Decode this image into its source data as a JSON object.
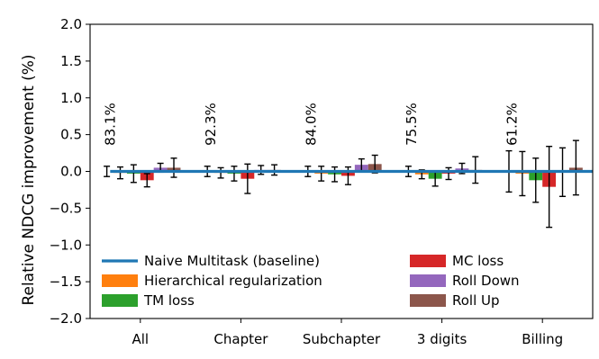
{
  "chart_data": {
    "type": "bar",
    "title": "",
    "xlabel": "",
    "ylabel": "Relative NDCG improvement (%)",
    "ylim": [
      -2.0,
      2.0
    ],
    "yticks": [
      "−2.0",
      "−1.5",
      "−1.0",
      "−0.5",
      "0.0",
      "0.5",
      "1.0",
      "1.5",
      "2.0"
    ],
    "ytick_values": [
      -2.0,
      -1.5,
      -1.0,
      -0.5,
      0.0,
      0.5,
      1.0,
      1.5,
      2.0
    ],
    "grid": false,
    "legend_position": "lower-left, two columns",
    "categories": [
      "All",
      "Chapter",
      "Subchapter",
      "3 digits",
      "Billing"
    ],
    "category_annotations": [
      "83.1%",
      "92.3%",
      "84.0%",
      "75.5%",
      "61.2%"
    ],
    "baseline": {
      "name": "Naive Multitask (baseline)",
      "value": 0.0,
      "color": "#1f77b4"
    },
    "series": [
      {
        "name": "Naive Multitask (baseline)",
        "color": "#1f77b4",
        "values": [
          0.0,
          0.0,
          0.0,
          0.0,
          0.0
        ],
        "errors": [
          0.07,
          0.07,
          0.07,
          0.07,
          0.28
        ]
      },
      {
        "name": "Hierarchical regularization",
        "color": "#ff7f0e",
        "values": [
          -0.02,
          -0.02,
          -0.03,
          -0.04,
          -0.03
        ],
        "errors": [
          0.08,
          0.07,
          0.1,
          0.06,
          0.3
        ]
      },
      {
        "name": "TM loss",
        "color": "#2ca02c",
        "values": [
          -0.03,
          -0.03,
          -0.04,
          -0.1,
          -0.12
        ],
        "errors": [
          0.12,
          0.1,
          0.1,
          0.1,
          0.3
        ]
      },
      {
        "name": "MC loss",
        "color": "#d62728",
        "values": [
          -0.12,
          -0.1,
          -0.06,
          -0.03,
          -0.21
        ],
        "errors": [
          0.09,
          0.2,
          0.12,
          0.08,
          0.55
        ]
      },
      {
        "name": "Roll Down",
        "color": "#9467bd",
        "values": [
          0.05,
          0.02,
          0.09,
          0.04,
          -0.01
        ],
        "errors": [
          0.06,
          0.06,
          0.08,
          0.07,
          0.33
        ]
      },
      {
        "name": "Roll Up",
        "color": "#8c564b",
        "values": [
          0.05,
          0.02,
          0.1,
          0.02,
          0.05
        ],
        "errors": [
          0.13,
          0.07,
          0.12,
          0.18,
          0.37
        ]
      }
    ]
  }
}
